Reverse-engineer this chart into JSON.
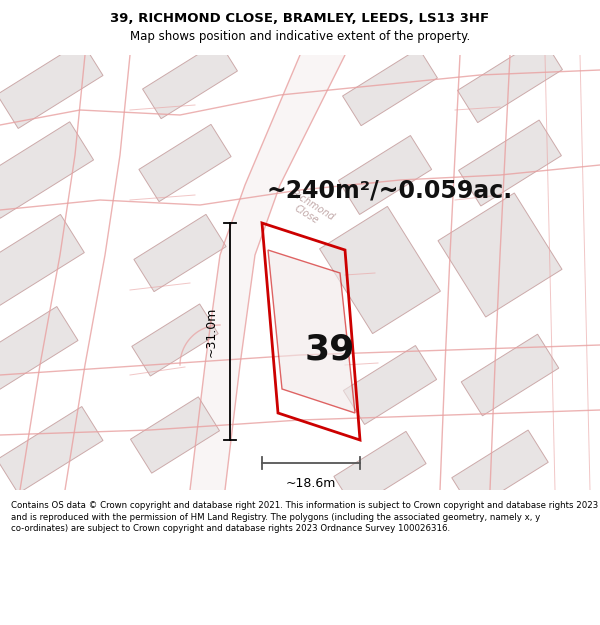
{
  "title": "39, RICHMOND CLOSE, BRAMLEY, LEEDS, LS13 3HF",
  "subtitle": "Map shows position and indicative extent of the property.",
  "area_text": "~240m²/~0.059ac.",
  "number_label": "39",
  "dim_horizontal": "~18.6m",
  "dim_vertical": "~31.0m",
  "footer": "Contains OS data © Crown copyright and database right 2021. This information is subject to Crown copyright and database rights 2023 and is reproduced with the permission of HM Land Registry. The polygons (including the associated geometry, namely x, y co-ordinates) are subject to Crown copyright and database rights 2023 Ordnance Survey 100026316.",
  "bg_color": "#ffffff",
  "map_bg": "#f7f5f5",
  "road_color": "#e8a0a0",
  "road_fill": "#f5eded",
  "plot_outline_color": "#cc0000",
  "building_fill": "#e8e4e4",
  "building_outline": "#ccaaaa",
  "title_fontsize": 9.5,
  "subtitle_fontsize": 8.5,
  "area_fontsize": 17,
  "number_fontsize": 26,
  "dim_fontsize": 9,
  "footer_fontsize": 6.2
}
